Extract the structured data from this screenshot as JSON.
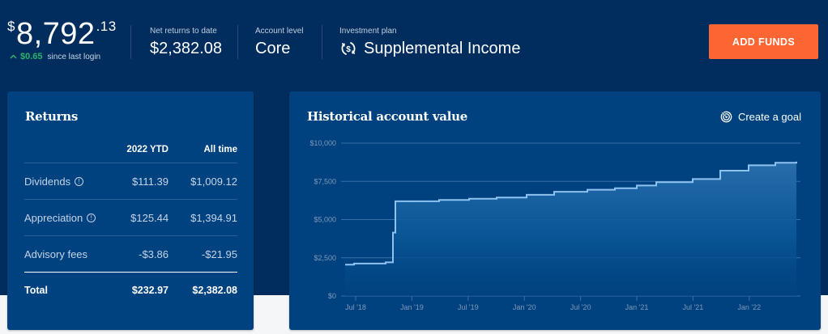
{
  "header": {
    "balance": {
      "currency_symbol": "$",
      "whole": "8,792",
      "cents": ".13"
    },
    "change": {
      "arrow": "^",
      "amount": "$0.65",
      "label": "since last login"
    },
    "net_returns": {
      "label": "Net returns to date",
      "value": "$2,382.08"
    },
    "account_level": {
      "label": "Account level",
      "value": "Core"
    },
    "investment_plan": {
      "label": "Investment plan",
      "value": "Supplemental Income",
      "icon": "dollar-cycle-icon"
    },
    "add_funds_label": "ADD FUNDS"
  },
  "colors": {
    "header_bg": "#002d5e",
    "card_bg": "#00427f",
    "accent_button": "#fd6533",
    "positive": "#27b36a",
    "chart_line": "#8ec3f0"
  },
  "returns": {
    "title": "Returns",
    "columns": [
      "",
      "2022 YTD",
      "All time"
    ],
    "rows": [
      {
        "label": "Dividends",
        "info": true,
        "ytd": "$111.39",
        "all_time": "$1,009.12"
      },
      {
        "label": "Appreciation",
        "info": true,
        "ytd": "$125.44",
        "all_time": "$1,394.91"
      },
      {
        "label": "Advisory fees",
        "info": false,
        "ytd": "-$3.86",
        "all_time": "-$21.95"
      }
    ],
    "total": {
      "label": "Total",
      "ytd": "$232.97",
      "all_time": "$2,382.08"
    },
    "info_glyph": "!"
  },
  "historical": {
    "title": "Historical account value",
    "create_goal_label": "Create a goal",
    "create_goal_icon": "target-icon"
  },
  "chart_data": {
    "type": "area",
    "title": "Historical account value",
    "xlabel": "",
    "ylabel": "",
    "ylim": [
      0,
      10000
    ],
    "y_ticks": [
      0,
      2500,
      5000,
      7500,
      10000
    ],
    "y_tick_labels": [
      "$0",
      "$2,500",
      "$5,000",
      "$7,500",
      "$10,000"
    ],
    "x_tick_labels": [
      "Jul '18",
      "Jan '19",
      "Jul '19",
      "Jan '20",
      "Jul '20",
      "Jan '21",
      "Jul '21",
      "Jan '22"
    ],
    "grid": true,
    "legend": "none",
    "series": [
      {
        "name": "Account value",
        "x": [
          "Jun '18",
          "Jul '18",
          "Oct '18",
          "Nov '18",
          "Nov '18",
          "Jan '19",
          "Apr '19",
          "Jul '19",
          "Oct '19",
          "Jan '20",
          "Jul '20",
          "Oct '20",
          "Jan '21",
          "Mar '21",
          "Jul '21",
          "Oct '21",
          "Jan '22",
          "Apr '22",
          "Jun '22"
        ],
        "values": [
          2050,
          2120,
          2200,
          4150,
          6200,
          6280,
          6360,
          6440,
          6620,
          6820,
          6950,
          7050,
          7230,
          7450,
          7650,
          8200,
          8550,
          8720,
          8790
        ]
      }
    ]
  }
}
